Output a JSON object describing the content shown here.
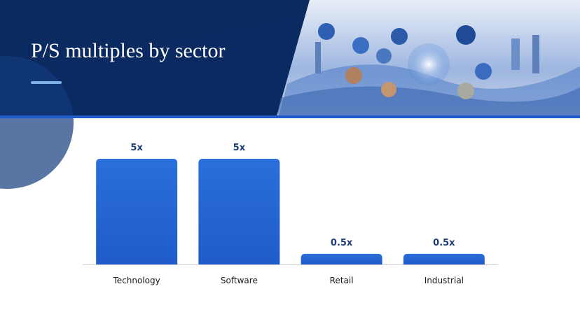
{
  "chart_data": {
    "type": "bar",
    "title": "P/S multiples by sector",
    "categories": [
      "Technology",
      "Software",
      "Retail",
      "Industrial"
    ],
    "values": [
      5,
      5,
      0.5,
      0.5
    ],
    "value_labels": [
      "5x",
      "5x",
      "0.5x",
      "0.5x"
    ],
    "color": "#2566d6"
  }
}
